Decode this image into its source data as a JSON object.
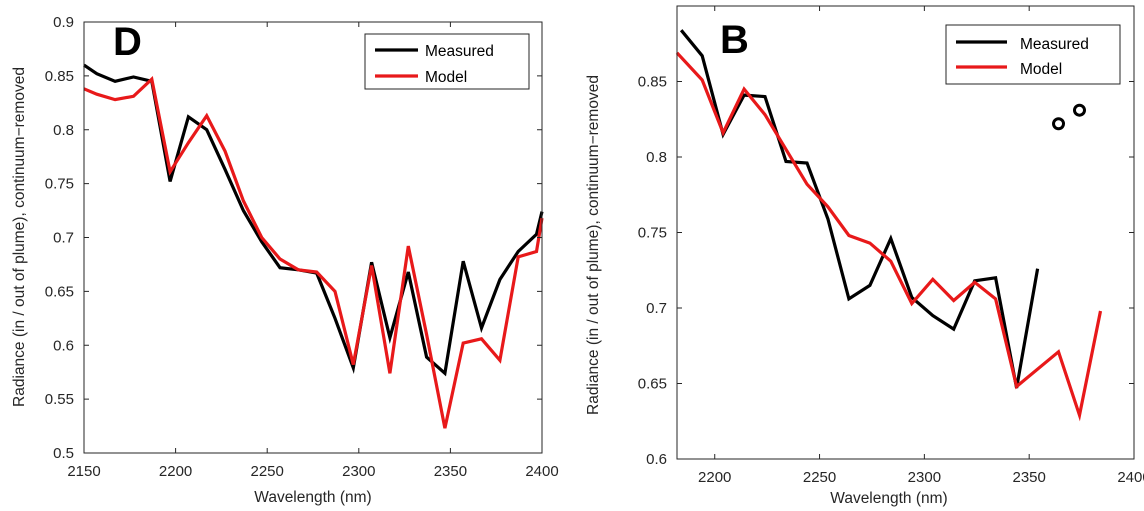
{
  "chart_data": [
    {
      "type": "line",
      "title": "D",
      "xlabel": "Wavelength (nm)",
      "ylabel": "Radiance (in / out of plume), continuum−removed",
      "xlim": [
        2150,
        2400
      ],
      "ylim": [
        0.5,
        0.9
      ],
      "xticks": [
        "2150",
        "2200",
        "2250",
        "2300",
        "2350",
        "2400"
      ],
      "yticks": [
        "0.5",
        "0.55",
        "0.6",
        "0.65",
        "0.7",
        "0.75",
        "0.8",
        "0.85",
        "0.9"
      ],
      "grid": false,
      "legend": "top-right",
      "series": [
        {
          "name": "Measured",
          "color": "#000000",
          "x": [
            2150,
            2157,
            2167,
            2177,
            2187,
            2197,
            2207,
            2217,
            2227,
            2237,
            2247,
            2257,
            2267,
            2277,
            2287,
            2297,
            2307,
            2317,
            2327,
            2337,
            2347,
            2357,
            2367,
            2377,
            2387,
            2397,
            2400
          ],
          "y": [
            0.86,
            0.852,
            0.845,
            0.849,
            0.845,
            0.752,
            0.812,
            0.8,
            0.763,
            0.725,
            0.696,
            0.672,
            0.67,
            0.667,
            0.625,
            0.579,
            0.677,
            0.607,
            0.668,
            0.589,
            0.574,
            0.678,
            0.616,
            0.661,
            0.687,
            0.703,
            0.724
          ]
        },
        {
          "name": "Model",
          "color": "#e8191a",
          "x": [
            2150,
            2157,
            2167,
            2177,
            2187,
            2197,
            2207,
            2217,
            2227,
            2237,
            2247,
            2257,
            2267,
            2277,
            2287,
            2297,
            2307,
            2317,
            2327,
            2337,
            2347,
            2357,
            2367,
            2377,
            2387,
            2397,
            2400
          ],
          "y": [
            0.838,
            0.833,
            0.828,
            0.831,
            0.847,
            0.761,
            0.788,
            0.813,
            0.78,
            0.734,
            0.7,
            0.68,
            0.67,
            0.668,
            0.65,
            0.582,
            0.674,
            0.574,
            0.692,
            0.61,
            0.523,
            0.602,
            0.606,
            0.586,
            0.682,
            0.687,
            0.718
          ]
        }
      ]
    },
    {
      "type": "line",
      "title": "B",
      "xlabel": "Wavelength (nm)",
      "ylabel": "Radiance (in / out of plume), continuum−removed",
      "xlim": [
        2182,
        2400
      ],
      "ylim": [
        0.6,
        0.9
      ],
      "xticks": [
        "2200",
        "2250",
        "2300",
        "2350",
        "2400"
      ],
      "yticks": [
        "0.6",
        "0.65",
        "0.7",
        "0.75",
        "0.8",
        "0.85"
      ],
      "grid": false,
      "legend": "top-right",
      "series": [
        {
          "name": "Measured",
          "color": "#000000",
          "x": [
            2184,
            2194,
            2204,
            2214,
            2224,
            2234,
            2244,
            2254,
            2264,
            2274,
            2284,
            2294,
            2304,
            2314,
            2324,
            2334,
            2344,
            2354
          ],
          "y": [
            0.884,
            0.867,
            0.815,
            0.841,
            0.84,
            0.797,
            0.796,
            0.759,
            0.706,
            0.715,
            0.746,
            0.707,
            0.695,
            0.686,
            0.718,
            0.72,
            0.647,
            0.726
          ]
        },
        {
          "name": "Model",
          "color": "#e8191a",
          "x": [
            2182,
            2194,
            2204,
            2214,
            2224,
            2234,
            2244,
            2254,
            2264,
            2274,
            2284,
            2294,
            2304,
            2314,
            2324,
            2334,
            2344,
            2364,
            2374,
            2384
          ],
          "y": [
            0.869,
            0.851,
            0.816,
            0.845,
            0.828,
            0.805,
            0.782,
            0.767,
            0.748,
            0.743,
            0.731,
            0.703,
            0.719,
            0.705,
            0.717,
            0.706,
            0.648,
            0.671,
            0.629,
            0.698
          ]
        },
        {
          "name": "",
          "type": "scatter",
          "marker": "circle-open",
          "color": "#000000",
          "x": [
            2364,
            2374
          ],
          "y": [
            0.822,
            0.831
          ]
        }
      ]
    }
  ]
}
